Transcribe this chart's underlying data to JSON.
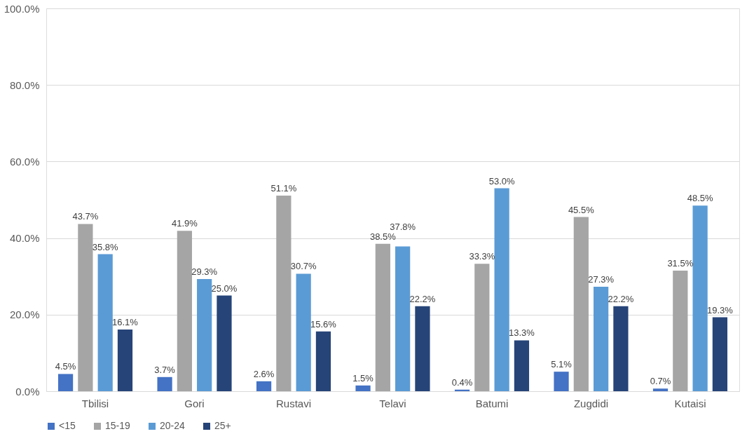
{
  "chart_data": {
    "type": "bar",
    "categories": [
      "Tbilisi",
      "Gori",
      "Rustavi",
      "Telavi",
      "Batumi",
      "Zugdidi",
      "Kutaisi"
    ],
    "series": [
      {
        "name": "<15",
        "color": "#4472c4",
        "values": [
          4.5,
          3.7,
          2.6,
          1.5,
          0.4,
          5.1,
          0.7
        ]
      },
      {
        "name": "15-19",
        "color": "#a5a5a5",
        "values": [
          43.7,
          41.9,
          51.1,
          38.5,
          33.3,
          45.5,
          31.5
        ]
      },
      {
        "name": "20-24",
        "color": "#5b9bd5",
        "values": [
          35.8,
          29.3,
          30.7,
          37.8,
          53.0,
          27.3,
          48.5
        ]
      },
      {
        "name": "25+",
        "color": "#264478",
        "values": [
          16.1,
          25.0,
          15.6,
          22.2,
          13.3,
          22.2,
          19.3
        ]
      }
    ],
    "value_labels": [
      [
        "4.5%",
        "3.7%",
        "2.6%",
        "1.5%",
        "0.4%",
        "5.1%",
        "0.7%"
      ],
      [
        "43.7%",
        "41.9%",
        "51.1%",
        "38.5%",
        "33.3%",
        "45.5%",
        "31.5%"
      ],
      [
        "35.8%",
        "29.3%",
        "30.7%",
        "37.8%",
        "53.0%",
        "27.3%",
        "48.5%"
      ],
      [
        "16.1%",
        "25.0%",
        "15.6%",
        "22.2%",
        "13.3%",
        "22.2%",
        "19.3%"
      ]
    ],
    "ylim": [
      0,
      100
    ],
    "yticks": [
      {
        "value": 0,
        "label": "0.0%"
      },
      {
        "value": 20,
        "label": "20.0%"
      },
      {
        "value": 40,
        "label": "40.0%"
      },
      {
        "value": 60,
        "label": "60.0%"
      },
      {
        "value": 80,
        "label": "80.0%"
      },
      {
        "value": 100,
        "label": "100.0%"
      }
    ],
    "grid": "y",
    "legend": "bottom"
  }
}
